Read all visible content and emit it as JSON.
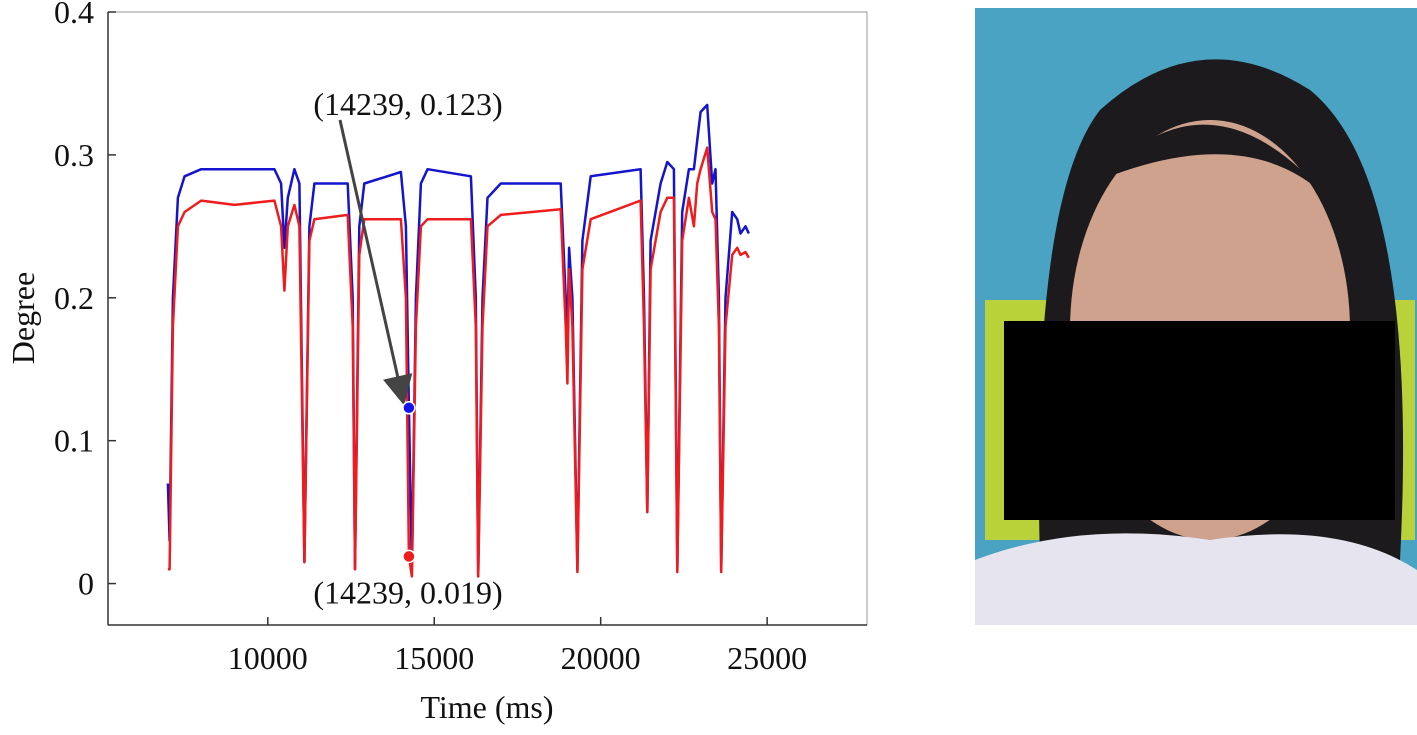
{
  "chart_data": {
    "type": "line",
    "xlabel": "Time (ms)",
    "ylabel": "Degree",
    "xlim": [
      5200,
      28000
    ],
    "ylim": [
      -0.029,
      0.4
    ],
    "xticks": [
      10000,
      15000,
      20000,
      25000
    ],
    "yticks": [
      0,
      0.1,
      0.2,
      0.3,
      0.4
    ],
    "x": [
      7000,
      7050,
      7150,
      7300,
      7500,
      8000,
      9000,
      10200,
      10400,
      10500,
      10600,
      10800,
      10950,
      11100,
      11250,
      11400,
      12400,
      12550,
      12620,
      12750,
      12900,
      14000,
      14150,
      14239,
      14330,
      14450,
      14600,
      14800,
      16100,
      16250,
      16320,
      16450,
      16600,
      17000,
      18800,
      18950,
      19000,
      19050,
      19150,
      19300,
      19450,
      19700,
      21200,
      21300,
      21400,
      21500,
      21800,
      22000,
      22200,
      22300,
      22450,
      22650,
      22800,
      22900,
      23000,
      23200,
      23350,
      23450,
      23550,
      23620,
      23750,
      23950,
      24100,
      24200,
      24350,
      24450
    ],
    "series": [
      {
        "color": "#1414cc",
        "values": [
          0.07,
          0.03,
          0.2,
          0.27,
          0.285,
          0.29,
          0.29,
          0.29,
          0.28,
          0.235,
          0.27,
          0.29,
          0.28,
          0.015,
          0.25,
          0.28,
          0.28,
          0.2,
          0.01,
          0.25,
          0.28,
          0.288,
          0.25,
          0.123,
          0.01,
          0.2,
          0.28,
          0.29,
          0.285,
          0.2,
          0.005,
          0.2,
          0.27,
          0.28,
          0.28,
          0.2,
          0.17,
          0.235,
          0.2,
          0.01,
          0.24,
          0.285,
          0.29,
          0.2,
          0.05,
          0.24,
          0.28,
          0.295,
          0.29,
          0.01,
          0.26,
          0.29,
          0.29,
          0.31,
          0.33,
          0.335,
          0.28,
          0.29,
          0.2,
          0.01,
          0.2,
          0.26,
          0.255,
          0.245,
          0.25,
          0.245
        ]
      },
      {
        "color": "#ee1c1c",
        "values": [
          0.01,
          0.01,
          0.18,
          0.25,
          0.26,
          0.268,
          0.265,
          0.268,
          0.25,
          0.205,
          0.25,
          0.265,
          0.25,
          0.015,
          0.24,
          0.255,
          0.258,
          0.18,
          0.01,
          0.23,
          0.255,
          0.255,
          0.2,
          0.019,
          0.005,
          0.18,
          0.25,
          0.255,
          0.255,
          0.18,
          0.005,
          0.18,
          0.25,
          0.258,
          0.262,
          0.18,
          0.14,
          0.22,
          0.18,
          0.008,
          0.22,
          0.255,
          0.268,
          0.18,
          0.05,
          0.22,
          0.26,
          0.27,
          0.27,
          0.008,
          0.24,
          0.27,
          0.25,
          0.28,
          0.29,
          0.305,
          0.26,
          0.255,
          0.18,
          0.008,
          0.18,
          0.23,
          0.235,
          0.23,
          0.232,
          0.228
        ]
      }
    ],
    "annotations": [
      {
        "x": 14239,
        "y": 0.123,
        "label": "(14239, 0.123)",
        "color": "#1414ee"
      },
      {
        "x": 14239,
        "y": 0.019,
        "label": "(14239, 0.019)",
        "color": "#ee1c1c"
      }
    ]
  }
}
